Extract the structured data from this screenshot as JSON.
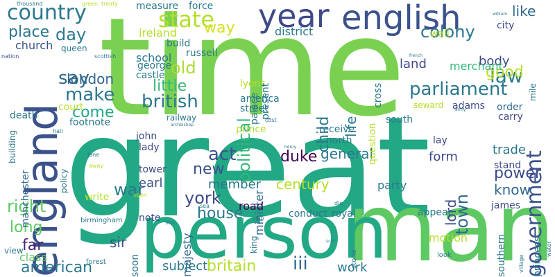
{
  "palette": {
    "yellow": "#b5de2b",
    "lightgreen": "#6ece58",
    "green": "#35b779",
    "teal": "#1f9e89",
    "blueteal": "#26828e",
    "blue": "#31688e",
    "indigo": "#3e4989",
    "purple": "#482878",
    "darkpurple": "#440154",
    "lime": "#cddc39"
  },
  "words": [
    {
      "id": "great",
      "text": "great",
      "color": "#22a884"
    },
    {
      "id": "time",
      "text": "time",
      "color": "#7ad151"
    },
    {
      "id": "man",
      "text": "man",
      "color": "#5ec962"
    },
    {
      "id": "person",
      "text": "person",
      "color": "#22a884"
    },
    {
      "id": "england",
      "text": "england",
      "color": "#3b528b"
    },
    {
      "id": "english",
      "text": "english",
      "color": "#3b528b"
    },
    {
      "id": "year",
      "text": "year",
      "color": "#3e4a89"
    },
    {
      "id": "country",
      "text": "country",
      "color": "#2a788e"
    },
    {
      "id": "government",
      "text": "government",
      "color": "#3b528b"
    },
    {
      "id": "state",
      "text": "state",
      "color": "#b5de2b"
    },
    {
      "id": "parliament",
      "text": "parliament",
      "color": "#2a788e"
    },
    {
      "id": "british",
      "text": "british",
      "color": "#2a788e"
    },
    {
      "id": "political",
      "text": "political",
      "color": "#35b779"
    },
    {
      "id": "colony",
      "text": "colony",
      "color": "#2a788e"
    },
    {
      "id": "law",
      "text": "law",
      "color": "#2a788e"
    },
    {
      "id": "like",
      "text": "like",
      "color": "#31688e"
    },
    {
      "id": "old",
      "text": "old",
      "color": "#addc30"
    },
    {
      "id": "day",
      "text": "day",
      "color": "#2a788e"
    },
    {
      "id": "way",
      "text": "way",
      "color": "#d2e21b"
    },
    {
      "id": "say",
      "text": "say",
      "color": "#31688e"
    },
    {
      "id": "make",
      "text": "make",
      "color": "#2a788e"
    },
    {
      "id": "little",
      "text": "little",
      "color": "#35b779"
    },
    {
      "id": "london",
      "text": "london",
      "color": "#31688e"
    },
    {
      "id": "place",
      "text": "place",
      "color": "#2a788e"
    },
    {
      "id": "good",
      "text": "good",
      "color": "#b5de2b"
    },
    {
      "id": "come",
      "text": "come",
      "color": "#22a884"
    },
    {
      "id": "new",
      "text": "new",
      "color": "#3b528b"
    },
    {
      "id": "act",
      "text": "act",
      "color": "#3b528b"
    },
    {
      "id": "york",
      "text": "york",
      "color": "#3e4a89"
    },
    {
      "id": "war",
      "text": "war",
      "color": "#2a788e"
    },
    {
      "id": "house",
      "text": "house",
      "color": "#2a788e"
    },
    {
      "id": "right",
      "text": "right",
      "color": "#5ec962"
    },
    {
      "id": "long",
      "text": "long",
      "color": "#5ec962"
    },
    {
      "id": "far",
      "text": "far",
      "color": "#482878"
    },
    {
      "id": "american",
      "text": "american",
      "color": "#2a788e"
    },
    {
      "id": "britain",
      "text": "britain",
      "color": "#b5de2b"
    },
    {
      "id": "iii",
      "text": "iii",
      "color": "#31688e"
    },
    {
      "id": "power",
      "text": "power",
      "color": "#3e4a89"
    },
    {
      "id": "know",
      "text": "know",
      "color": "#31688e"
    },
    {
      "id": "town",
      "text": "town",
      "color": "#31688e"
    },
    {
      "id": "general",
      "text": "general",
      "color": "#2a788e"
    },
    {
      "id": "century",
      "text": "century",
      "color": "#b5de2b"
    },
    {
      "id": "duke",
      "text": "duke",
      "color": "#440154"
    },
    {
      "id": "life",
      "text": "life",
      "color": "#2a788e"
    },
    {
      "id": "child",
      "text": "child",
      "color": "#2a788e"
    },
    {
      "id": "lord",
      "text": "lord",
      "color": "#3e4a89"
    },
    {
      "id": "land",
      "text": "land",
      "color": "#3e4a89"
    },
    {
      "id": "body",
      "text": "body",
      "color": "#3e4a89"
    },
    {
      "id": "district",
      "text": "district",
      "color": "#2a788e"
    },
    {
      "id": "merchant",
      "text": "merchant",
      "color": "#35b779"
    },
    {
      "id": "ireland",
      "text": "ireland",
      "color": "#b5de2b"
    },
    {
      "id": "church",
      "text": "church",
      "color": "#3b528b"
    },
    {
      "id": "school",
      "text": "school",
      "color": "#2a788e"
    },
    {
      "id": "sir",
      "text": "sir",
      "color": "#3b528b"
    },
    {
      "id": "earl",
      "text": "earl",
      "color": "#3b528b"
    },
    {
      "id": "member",
      "text": "member",
      "color": "#2a788e"
    },
    {
      "id": "minister",
      "text": "minister",
      "color": "#31688e"
    },
    {
      "id": "majesty",
      "text": "majesty",
      "color": "#31688e"
    },
    {
      "id": "trade",
      "text": "trade",
      "color": "#2a788e"
    },
    {
      "id": "form",
      "text": "form",
      "color": "#3e4a89"
    },
    {
      "id": "road",
      "text": "road",
      "color": "#440154"
    },
    {
      "id": "subject",
      "text": "subject",
      "color": "#2a788e"
    },
    {
      "id": "work",
      "text": "work",
      "color": "#2a788e"
    },
    {
      "id": "manchester",
      "text": "manchester",
      "color": "#31688e"
    },
    {
      "id": "class",
      "text": "class",
      "color": "#5ec962"
    },
    {
      "id": "princess",
      "text": "princess",
      "color": "#2a788e"
    },
    {
      "id": "motion",
      "text": "motion",
      "color": "#b5de2b"
    },
    {
      "id": "southern",
      "text": "southern",
      "color": "#2a788e"
    },
    {
      "id": "party",
      "text": "party",
      "color": "#2a788e"
    },
    {
      "id": "conduct",
      "text": "conduct",
      "color": "#2a788e"
    },
    {
      "id": "royal",
      "text": "royal",
      "color": "#2a788e"
    },
    {
      "id": "appear",
      "text": "appear",
      "color": "#2a788e"
    },
    {
      "id": "james",
      "text": "james",
      "color": "#3e4a89"
    },
    {
      "id": "stand",
      "text": "stand",
      "color": "#3e4a89"
    },
    {
      "id": "lay",
      "text": "lay",
      "color": "#3e4a89"
    },
    {
      "id": "carry",
      "text": "carry",
      "color": "#3e4a89"
    },
    {
      "id": "order",
      "text": "order",
      "color": "#31688e"
    },
    {
      "id": "adams",
      "text": "adams",
      "color": "#3e4a89"
    },
    {
      "id": "south",
      "text": "south",
      "color": "#2a788e"
    },
    {
      "id": "receive",
      "text": "receive",
      "color": "#2a788e"
    },
    {
      "id": "north",
      "text": "north",
      "color": "#2a788e"
    },
    {
      "id": "prince",
      "text": "prince",
      "color": "#b5de2b"
    },
    {
      "id": "street",
      "text": "street",
      "color": "#2a788e"
    },
    {
      "id": "america",
      "text": "america",
      "color": "#2a788e"
    },
    {
      "id": "lyons",
      "text": "lyons",
      "color": "#b5de2b"
    },
    {
      "id": "question",
      "text": "question",
      "color": "#b5de2b"
    },
    {
      "id": "cross",
      "text": "cross",
      "color": "#2a788e"
    },
    {
      "id": "palace",
      "text": "palace",
      "color": "#2a788e"
    },
    {
      "id": "present",
      "text": "present",
      "color": "#2a788e"
    },
    {
      "id": "russell",
      "text": "russell",
      "color": "#2a788e"
    },
    {
      "id": "build",
      "text": "build",
      "color": "#2a788e"
    },
    {
      "id": "measure",
      "text": "measure",
      "color": "#2a788e"
    },
    {
      "id": "force",
      "text": "force",
      "color": "#2a788e"
    },
    {
      "id": "george",
      "text": "george",
      "color": "#2a788e"
    },
    {
      "id": "castle",
      "text": "castle",
      "color": "#2a788e"
    },
    {
      "id": "queen",
      "text": "queen",
      "color": "#2a788e"
    },
    {
      "id": "building",
      "text": "building",
      "color": "#2a788e"
    },
    {
      "id": "death",
      "text": "death",
      "color": "#2a788e"
    },
    {
      "id": "court",
      "text": "court",
      "color": "#b5de2b"
    },
    {
      "id": "footnote",
      "text": "footnote",
      "color": "#2a788e"
    },
    {
      "id": "john",
      "text": "john",
      "color": "#3e4a89"
    },
    {
      "id": "lady",
      "text": "lady",
      "color": "#3e4a89"
    },
    {
      "id": "tower",
      "text": "tower",
      "color": "#3e4a89"
    },
    {
      "id": "policy",
      "text": "policy",
      "color": "#2a788e"
    },
    {
      "id": "write",
      "text": "write",
      "color": "#b5de2b"
    },
    {
      "id": "note",
      "text": "note",
      "color": "#3e4a89"
    },
    {
      "id": "birmingham",
      "text": "birmingham",
      "color": "#2a788e"
    },
    {
      "id": "soon",
      "text": "soon",
      "color": "#2a788e"
    },
    {
      "id": "view",
      "text": "view",
      "color": "#2a788e"
    },
    {
      "id": "forest",
      "text": "forest",
      "color": "#2a788e"
    },
    {
      "id": "king",
      "text": "king",
      "color": "#2a788e"
    },
    {
      "id": "ship",
      "text": "ship",
      "color": "#2a788e"
    },
    {
      "id": "stone",
      "text": "stone",
      "color": "#2a788e"
    },
    {
      "id": "look",
      "text": "look",
      "color": "#2a788e"
    },
    {
      "id": "village",
      "text": "village",
      "color": "#2a788e"
    },
    {
      "id": "water",
      "text": "water",
      "color": "#2a788e"
    },
    {
      "id": "city",
      "text": "city",
      "color": "#3e4a89"
    },
    {
      "id": "wall",
      "text": "wall",
      "color": "#b5de2b"
    },
    {
      "id": "mile",
      "text": "mile",
      "color": "#2a788e"
    },
    {
      "id": "seward",
      "text": "seward",
      "color": "#b5de2b"
    },
    {
      "id": "railway",
      "text": "railway",
      "color": "#2a788e"
    },
    {
      "id": "archbishop",
      "text": "archbishop",
      "color": "#2a788e"
    },
    {
      "id": "thousand",
      "text": "thousand",
      "color": "#2a788e"
    },
    {
      "id": "green",
      "text": "green",
      "color": "#b5de2b"
    },
    {
      "id": "treaty",
      "text": "treaty",
      "color": "#b5de2b"
    },
    {
      "id": "hall",
      "text": "hall",
      "color": "#2a788e"
    },
    {
      "id": "nation",
      "text": "nation",
      "color": "#3e4a89"
    },
    {
      "id": "scottish",
      "text": "scottish",
      "color": "#2a788e"
    },
    {
      "id": "william",
      "text": "william",
      "color": "#2a788e"
    },
    {
      "id": "french",
      "text": "french",
      "color": "#2a788e"
    },
    {
      "id": "army",
      "text": "army",
      "color": "#2a788e"
    },
    {
      "id": "henry",
      "text": "henry",
      "color": "#2a788e"
    },
    {
      "id": "lane",
      "text": "lane",
      "color": "#2a788e"
    },
    {
      "id": "away",
      "text": "away",
      "color": "#b5de2b"
    },
    {
      "id": "open",
      "text": "open",
      "color": "#b5de2b"
    },
    {
      "id": "die",
      "text": "die",
      "color": "#2a788e"
    },
    {
      "id": "sea",
      "text": "sea",
      "color": "#2a788e"
    },
    {
      "id": "son",
      "text": "son",
      "color": "#2a788e"
    },
    {
      "id": "cost",
      "text": "cost",
      "color": "#2a788e"
    },
    {
      "id": "scot",
      "text": "scot",
      "color": "#2a788e"
    }
  ]
}
